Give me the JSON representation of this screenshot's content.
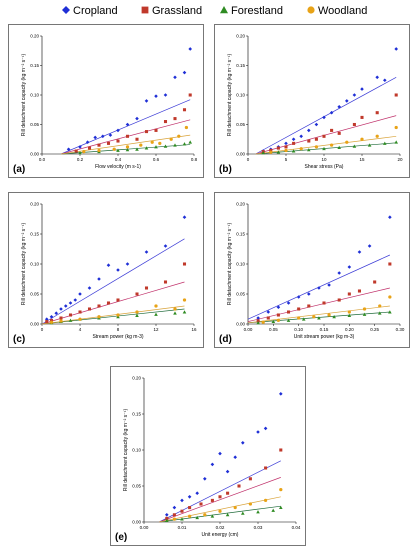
{
  "legend": {
    "items": [
      {
        "name": "Cropland",
        "color": "#1f2fd6",
        "marker": "diamond"
      },
      {
        "name": "Grassland",
        "color": "#c0392b",
        "marker": "square"
      },
      {
        "name": "Forestland",
        "color": "#2e8b22",
        "marker": "triangle"
      },
      {
        "name": "Woodland",
        "color": "#e8a317",
        "marker": "circle"
      }
    ]
  },
  "line_colors": {
    "Cropland": "#3b3bd6",
    "Grassland": "#c0306a",
    "Forestland": "#1f6b3a",
    "Woodland": "#d9a33a"
  },
  "chart_data": [
    {
      "type": "scatter",
      "label": "(a)",
      "xlabel": "Flow velocity (m s-1)",
      "ylabel": "Rill detachment capacity (kg m⁻² s⁻¹)",
      "xlim": [
        0,
        0.8
      ],
      "ylim": [
        0,
        0.2
      ],
      "xticks": [
        "0.0",
        "0.2",
        "0.4",
        "0.6",
        "0.8"
      ],
      "yticks": [
        "0.00",
        "0.05",
        "0.10",
        "0.15",
        "0.20"
      ],
      "series": [
        {
          "name": "Cropland",
          "x": [
            0.14,
            0.2,
            0.24,
            0.28,
            0.32,
            0.36,
            0.4,
            0.45,
            0.5,
            0.55,
            0.6,
            0.65,
            0.7,
            0.75,
            0.78
          ],
          "y": [
            0.008,
            0.012,
            0.02,
            0.028,
            0.03,
            0.032,
            0.04,
            0.05,
            0.06,
            0.09,
            0.098,
            0.1,
            0.13,
            0.138,
            0.178
          ]
        },
        {
          "name": "Grassland",
          "x": [
            0.18,
            0.25,
            0.3,
            0.35,
            0.4,
            0.45,
            0.5,
            0.55,
            0.6,
            0.65,
            0.7,
            0.75,
            0.78
          ],
          "y": [
            0.005,
            0.01,
            0.015,
            0.018,
            0.022,
            0.03,
            0.025,
            0.038,
            0.04,
            0.055,
            0.06,
            0.075,
            0.1
          ]
        },
        {
          "name": "Forestland",
          "x": [
            0.2,
            0.3,
            0.4,
            0.45,
            0.5,
            0.55,
            0.6,
            0.65,
            0.7,
            0.75,
            0.78
          ],
          "y": [
            0.002,
            0.004,
            0.006,
            0.007,
            0.008,
            0.01,
            0.012,
            0.013,
            0.015,
            0.017,
            0.02
          ]
        },
        {
          "name": "Woodland",
          "x": [
            0.22,
            0.3,
            0.38,
            0.45,
            0.52,
            0.58,
            0.62,
            0.68,
            0.72,
            0.76
          ],
          "y": [
            0.004,
            0.006,
            0.008,
            0.012,
            0.015,
            0.02,
            0.018,
            0.025,
            0.03,
            0.045
          ]
        }
      ],
      "fits": [
        {
          "name": "Cropland",
          "x": [
            0.1,
            0.78
          ],
          "y": [
            0.0,
            0.092
          ]
        },
        {
          "name": "Grassland",
          "x": [
            0.1,
            0.78
          ],
          "y": [
            0.0,
            0.058
          ]
        },
        {
          "name": "Forestland",
          "x": [
            0.1,
            0.78
          ],
          "y": [
            0.0,
            0.016
          ]
        },
        {
          "name": "Woodland",
          "x": [
            0.1,
            0.78
          ],
          "y": [
            0.0,
            0.032
          ]
        }
      ]
    },
    {
      "type": "scatter",
      "label": "(b)",
      "xlabel": "Shear stress (Pa)",
      "ylabel": "Rill detachment capacity (kg m⁻² s⁻¹)",
      "xlim": [
        0,
        20
      ],
      "ylim": [
        0,
        0.2
      ],
      "xticks": [
        "0",
        "5",
        "10",
        "15",
        "20"
      ],
      "yticks": [
        "0.00",
        "0.05",
        "0.10",
        "0.15",
        "0.20"
      ],
      "series": [
        {
          "name": "Cropland",
          "x": [
            2,
            3,
            4,
            5,
            6,
            7,
            8,
            9,
            10,
            11,
            12,
            13,
            14,
            15,
            17,
            18,
            19.5
          ],
          "y": [
            0.005,
            0.008,
            0.012,
            0.018,
            0.025,
            0.03,
            0.04,
            0.05,
            0.062,
            0.07,
            0.08,
            0.09,
            0.1,
            0.11,
            0.13,
            0.125,
            0.178
          ]
        },
        {
          "name": "Grassland",
          "x": [
            2,
            3,
            4,
            5,
            6,
            8,
            9,
            10,
            11,
            12,
            14,
            15,
            17,
            19.5
          ],
          "y": [
            0.004,
            0.006,
            0.01,
            0.012,
            0.018,
            0.022,
            0.025,
            0.03,
            0.04,
            0.035,
            0.05,
            0.062,
            0.07,
            0.1
          ]
        },
        {
          "name": "Forestland",
          "x": [
            2,
            4,
            6,
            8,
            10,
            12,
            14,
            16,
            18,
            19.5
          ],
          "y": [
            0.002,
            0.003,
            0.005,
            0.007,
            0.009,
            0.011,
            0.013,
            0.015,
            0.018,
            0.02
          ]
        },
        {
          "name": "Woodland",
          "x": [
            3,
            5,
            7,
            9,
            11,
            13,
            15,
            17,
            19.5
          ],
          "y": [
            0.003,
            0.006,
            0.009,
            0.012,
            0.015,
            0.02,
            0.025,
            0.03,
            0.045
          ]
        }
      ],
      "fits": [
        {
          "name": "Cropland",
          "x": [
            1,
            19.5
          ],
          "y": [
            0.0,
            0.13
          ]
        },
        {
          "name": "Grassland",
          "x": [
            1,
            19.5
          ],
          "y": [
            0.0,
            0.065
          ]
        },
        {
          "name": "Forestland",
          "x": [
            1,
            19.5
          ],
          "y": [
            0.0,
            0.019
          ]
        },
        {
          "name": "Woodland",
          "x": [
            1,
            19.5
          ],
          "y": [
            0.0,
            0.03
          ]
        }
      ]
    },
    {
      "type": "scatter",
      "label": "(c)",
      "xlabel": "Stream power (kg m-3)",
      "ylabel": "Rill detachment capacity (kg m⁻² s⁻¹)",
      "xlim": [
        0,
        16
      ],
      "ylim": [
        0,
        0.2
      ],
      "xticks": [
        "0",
        "4",
        "8",
        "12",
        "16"
      ],
      "yticks": [
        "0.00",
        "0.05",
        "0.10",
        "0.15",
        "0.20"
      ],
      "series": [
        {
          "name": "Cropland",
          "x": [
            0.5,
            1,
            1.5,
            2,
            2.5,
            3,
            3.5,
            4,
            5,
            6,
            7,
            8,
            9,
            11,
            13,
            15
          ],
          "y": [
            0.008,
            0.012,
            0.018,
            0.025,
            0.03,
            0.035,
            0.04,
            0.05,
            0.06,
            0.075,
            0.098,
            0.09,
            0.1,
            0.12,
            0.13,
            0.178
          ]
        },
        {
          "name": "Grassland",
          "x": [
            0.5,
            1,
            2,
            3,
            4,
            5,
            6,
            7,
            8,
            10,
            11,
            13,
            15
          ],
          "y": [
            0.004,
            0.006,
            0.01,
            0.015,
            0.02,
            0.025,
            0.03,
            0.035,
            0.04,
            0.05,
            0.06,
            0.07,
            0.1
          ]
        },
        {
          "name": "Forestland",
          "x": [
            1,
            2,
            3,
            4,
            6,
            8,
            10,
            12,
            14,
            15
          ],
          "y": [
            0.002,
            0.004,
            0.006,
            0.008,
            0.01,
            0.012,
            0.014,
            0.016,
            0.018,
            0.02
          ]
        },
        {
          "name": "Woodland",
          "x": [
            1,
            2,
            4,
            6,
            8,
            10,
            12,
            14,
            15
          ],
          "y": [
            0.003,
            0.005,
            0.008,
            0.012,
            0.015,
            0.02,
            0.03,
            0.025,
            0.04
          ]
        }
      ],
      "fits": [
        {
          "name": "Cropland",
          "x": [
            0,
            15
          ],
          "y": [
            0.0,
            0.142
          ]
        },
        {
          "name": "Grassland",
          "x": [
            0,
            15
          ],
          "y": [
            0.0,
            0.07
          ]
        },
        {
          "name": "Forestland",
          "x": [
            0,
            15
          ],
          "y": [
            0.0,
            0.025
          ]
        },
        {
          "name": "Woodland",
          "x": [
            0,
            15
          ],
          "y": [
            0.0,
            0.03
          ]
        }
      ]
    },
    {
      "type": "scatter",
      "label": "(d)",
      "xlabel": "Unit stream power (kg m-3)",
      "ylabel": "Rill detachment capacity (kg m⁻² s⁻¹)",
      "xlim": [
        0,
        0.3
      ],
      "ylim": [
        0,
        0.2
      ],
      "xticks": [
        "0.00",
        "0.05",
        "0.10",
        "0.15",
        "0.20",
        "0.25",
        "0.30"
      ],
      "yticks": [
        "0.00",
        "0.05",
        "0.10",
        "0.15",
        "0.20"
      ],
      "series": [
        {
          "name": "Cropland",
          "x": [
            0.02,
            0.04,
            0.06,
            0.08,
            0.1,
            0.12,
            0.14,
            0.16,
            0.18,
            0.2,
            0.22,
            0.24,
            0.28
          ],
          "y": [
            0.01,
            0.02,
            0.028,
            0.035,
            0.045,
            0.05,
            0.06,
            0.065,
            0.085,
            0.095,
            0.12,
            0.13,
            0.178
          ]
        },
        {
          "name": "Grassland",
          "x": [
            0.02,
            0.04,
            0.06,
            0.08,
            0.1,
            0.12,
            0.15,
            0.18,
            0.2,
            0.22,
            0.25,
            0.28
          ],
          "y": [
            0.005,
            0.01,
            0.015,
            0.02,
            0.025,
            0.03,
            0.035,
            0.04,
            0.05,
            0.055,
            0.07,
            0.1
          ]
        },
        {
          "name": "Forestland",
          "x": [
            0.02,
            0.05,
            0.08,
            0.11,
            0.14,
            0.17,
            0.2,
            0.23,
            0.26,
            0.28
          ],
          "y": [
            0.002,
            0.004,
            0.006,
            0.008,
            0.01,
            0.012,
            0.014,
            0.016,
            0.018,
            0.02
          ]
        },
        {
          "name": "Woodland",
          "x": [
            0.03,
            0.06,
            0.1,
            0.13,
            0.16,
            0.2,
            0.23,
            0.26,
            0.28
          ],
          "y": [
            0.003,
            0.006,
            0.01,
            0.012,
            0.015,
            0.02,
            0.025,
            0.03,
            0.045
          ]
        }
      ],
      "fits": [
        {
          "name": "Cropland",
          "x": [
            0,
            0.28
          ],
          "y": [
            0.008,
            0.115
          ]
        },
        {
          "name": "Grassland",
          "x": [
            0,
            0.28
          ],
          "y": [
            0.004,
            0.06
          ]
        },
        {
          "name": "Forestland",
          "x": [
            0,
            0.28
          ],
          "y": [
            0.002,
            0.02
          ]
        },
        {
          "name": "Woodland",
          "x": [
            0,
            0.28
          ],
          "y": [
            0.002,
            0.03
          ]
        }
      ]
    },
    {
      "type": "scatter",
      "label": "(e)",
      "xlabel": "Unit energy (cm)",
      "ylabel": "Rill detachment capacity (kg m⁻² s⁻¹)",
      "xlim": [
        0,
        0.04
      ],
      "ylim": [
        0,
        0.2
      ],
      "xticks": [
        "0.00",
        "0.01",
        "0.02",
        "0.03",
        "0.04"
      ],
      "yticks": [
        "0.00",
        "0.05",
        "0.10",
        "0.15",
        "0.20"
      ],
      "series": [
        {
          "name": "Cropland",
          "x": [
            0.006,
            0.008,
            0.01,
            0.012,
            0.014,
            0.016,
            0.018,
            0.02,
            0.022,
            0.024,
            0.026,
            0.03,
            0.032,
            0.036
          ],
          "y": [
            0.01,
            0.02,
            0.03,
            0.035,
            0.04,
            0.06,
            0.08,
            0.095,
            0.07,
            0.09,
            0.11,
            0.125,
            0.13,
            0.178
          ]
        },
        {
          "name": "Grassland",
          "x": [
            0.006,
            0.008,
            0.01,
            0.012,
            0.015,
            0.018,
            0.02,
            0.022,
            0.025,
            0.028,
            0.032,
            0.036
          ],
          "y": [
            0.005,
            0.01,
            0.015,
            0.02,
            0.025,
            0.03,
            0.035,
            0.04,
            0.05,
            0.06,
            0.075,
            0.1
          ]
        },
        {
          "name": "Forestland",
          "x": [
            0.006,
            0.01,
            0.014,
            0.018,
            0.022,
            0.026,
            0.03,
            0.034,
            0.036
          ],
          "y": [
            0.002,
            0.004,
            0.006,
            0.008,
            0.01,
            0.012,
            0.014,
            0.016,
            0.02
          ]
        },
        {
          "name": "Woodland",
          "x": [
            0.008,
            0.012,
            0.016,
            0.02,
            0.024,
            0.028,
            0.032,
            0.036
          ],
          "y": [
            0.004,
            0.008,
            0.01,
            0.015,
            0.02,
            0.025,
            0.03,
            0.045
          ]
        }
      ],
      "fits": [
        {
          "name": "Cropland",
          "x": [
            0.004,
            0.036
          ],
          "y": [
            0.0,
            0.085
          ]
        },
        {
          "name": "Grassland",
          "x": [
            0.004,
            0.036
          ],
          "y": [
            0.0,
            0.062
          ]
        },
        {
          "name": "Forestland",
          "x": [
            0.004,
            0.036
          ],
          "y": [
            0.0,
            0.022
          ]
        },
        {
          "name": "Woodland",
          "x": [
            0.004,
            0.036
          ],
          "y": [
            0.0,
            0.035
          ]
        }
      ]
    }
  ]
}
